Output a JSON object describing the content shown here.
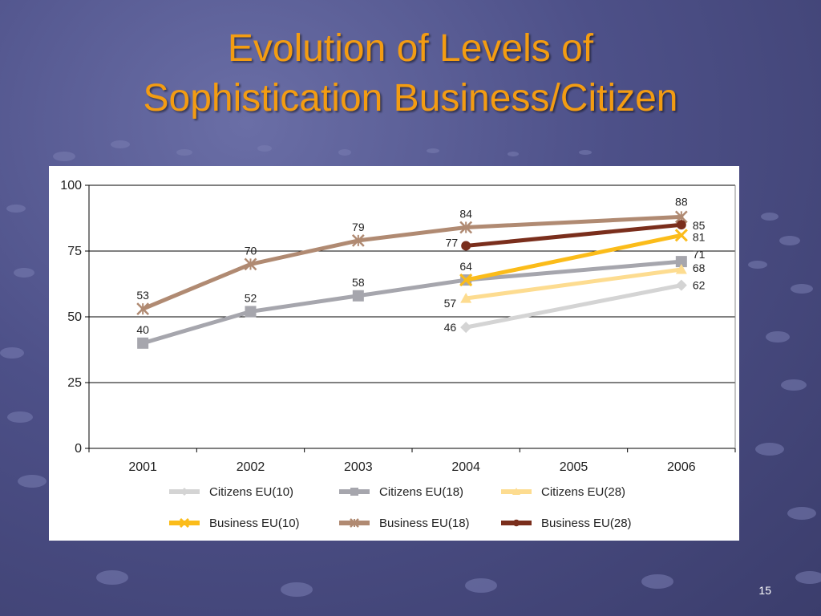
{
  "slide": {
    "title_line1": "Evolution of Levels of",
    "title_line2": "Sophistication Business/Citizen",
    "page_number": "15",
    "title_color": "#f39c12"
  },
  "chart_data": {
    "type": "line",
    "title": "",
    "xlabel": "",
    "ylabel": "",
    "categories": [
      "2001",
      "2002",
      "2003",
      "2004",
      "2005",
      "2006"
    ],
    "ylim": [
      0,
      100
    ],
    "yticks": [
      0,
      25,
      50,
      75,
      100
    ],
    "grid": "horizontal",
    "legend_position": "bottom",
    "series": [
      {
        "name": "Citizens EU(10)",
        "color": "#d4d4d4",
        "marker": "diamond",
        "values": [
          null,
          null,
          null,
          46,
          null,
          62
        ]
      },
      {
        "name": "Citizens EU(18)",
        "color": "#a6a6ad",
        "marker": "square",
        "values": [
          40,
          52,
          58,
          64,
          null,
          71
        ]
      },
      {
        "name": "Citizens EU(28)",
        "color": "#fddc90",
        "marker": "triangle",
        "values": [
          null,
          null,
          null,
          57,
          null,
          68
        ]
      },
      {
        "name": "Business EU(10)",
        "color": "#fbbc1a",
        "marker": "x",
        "values": [
          null,
          null,
          null,
          64,
          null,
          81
        ]
      },
      {
        "name": "Business EU(18)",
        "color": "#b08a72",
        "marker": "star",
        "values": [
          53,
          70,
          79,
          84,
          null,
          88
        ]
      },
      {
        "name": "Business EU(28)",
        "color": "#7a2e1c",
        "marker": "circle",
        "values": [
          null,
          null,
          null,
          77,
          null,
          85
        ]
      }
    ]
  }
}
